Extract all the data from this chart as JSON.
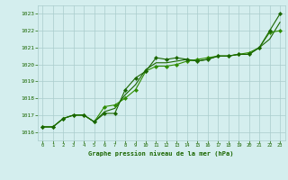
{
  "x": [
    0,
    1,
    2,
    3,
    4,
    5,
    6,
    7,
    8,
    9,
    10,
    11,
    12,
    13,
    14,
    15,
    16,
    17,
    18,
    19,
    20,
    21,
    22,
    23
  ],
  "series1": [
    1016.3,
    1016.3,
    1016.8,
    1017.0,
    1017.0,
    1016.6,
    1017.1,
    1017.1,
    1018.5,
    1019.2,
    1019.6,
    1020.4,
    1020.3,
    1020.4,
    1020.3,
    1020.2,
    1020.3,
    1020.5,
    1020.5,
    1020.6,
    1020.6,
    1021.0,
    1022.0,
    1023.0
  ],
  "series2": [
    1016.3,
    1016.3,
    1016.8,
    1017.0,
    1017.0,
    1016.6,
    1017.5,
    1017.6,
    1018.0,
    1018.5,
    1019.6,
    1019.9,
    1019.9,
    1020.0,
    1020.2,
    1020.3,
    1020.4,
    1020.5,
    1020.5,
    1020.6,
    1020.7,
    1021.0,
    1021.9,
    1022.0
  ],
  "series3": [
    1016.3,
    1016.3,
    1016.8,
    1017.0,
    1017.0,
    1016.6,
    1017.2,
    1017.4,
    1018.2,
    1018.8,
    1019.7,
    1020.1,
    1020.1,
    1020.2,
    1020.3,
    1020.2,
    1020.3,
    1020.5,
    1020.5,
    1020.6,
    1020.6,
    1021.0,
    1021.5,
    1022.5
  ],
  "line_color1": "#1a6600",
  "line_color2": "#2d8c00",
  "line_color3": "#1a6600",
  "bg_color": "#d4eeee",
  "grid_color": "#aacccc",
  "text_color": "#1a6600",
  "xlabel": "Graphe pression niveau de la mer (hPa)",
  "ylim": [
    1015.5,
    1023.5
  ],
  "xlim": [
    -0.5,
    23.5
  ],
  "yticks": [
    1016,
    1017,
    1018,
    1019,
    1020,
    1021,
    1022,
    1023
  ],
  "xticks": [
    0,
    1,
    2,
    3,
    4,
    5,
    6,
    7,
    8,
    9,
    10,
    11,
    12,
    13,
    14,
    15,
    16,
    17,
    18,
    19,
    20,
    21,
    22,
    23
  ]
}
